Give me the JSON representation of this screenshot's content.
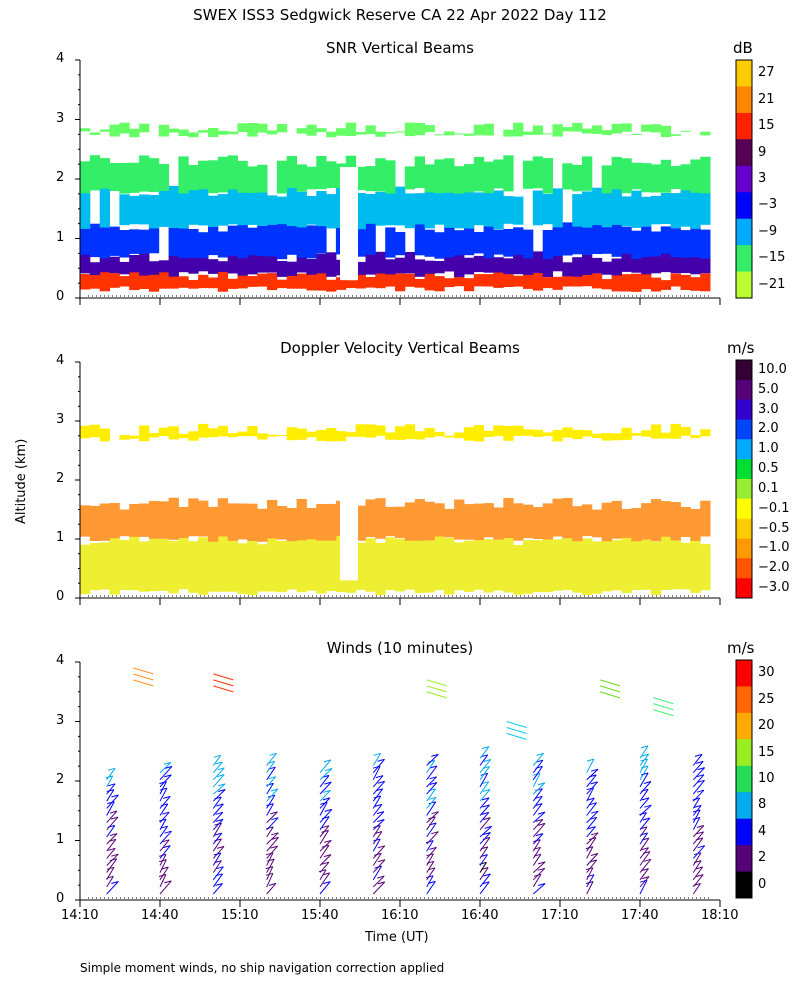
{
  "header": {
    "title": "SWEX ISS3 Sedgwick Reserve CA  22 Apr 2022 Day 112"
  },
  "footer": {
    "note": "Simple moment winds, no ship navigation correction applied"
  },
  "shared_x": {
    "label": "Time (UT)",
    "ticks": [
      "14:10",
      "14:40",
      "15:10",
      "15:40",
      "16:10",
      "16:40",
      "17:10",
      "17:40",
      "18:10"
    ]
  },
  "shared_y": {
    "label": "Altitude (km)",
    "ticks": [
      "0",
      "1",
      "2",
      "3",
      "4"
    ]
  },
  "chart_data": [
    {
      "type": "heatmap",
      "title": "SNR Vertical Beams",
      "unit": "dB",
      "xlim": [
        "14:10",
        "18:10"
      ],
      "ylim": [
        0,
        4
      ],
      "colorbar": {
        "labels": [
          "27",
          "21",
          "15",
          "9",
          "3",
          "−3",
          "−9",
          "−15",
          "−21"
        ],
        "colors": [
          "#ffcc00",
          "#ff8800",
          "#ff2200",
          "#550055",
          "#6600cc",
          "#0000ff",
          "#00aaff",
          "#33ee66",
          "#bbff33"
        ]
      },
      "layers": [
        {
          "name": "strong-bottom",
          "alt_range_km": [
            0.15,
            0.4
          ],
          "color": "#ff3300"
        },
        {
          "name": "violet-band",
          "alt_range_km": [
            0.4,
            0.7
          ],
          "color": "#4400aa"
        },
        {
          "name": "blue-layer",
          "alt_range_km": [
            0.7,
            1.2
          ],
          "color": "#0033ff"
        },
        {
          "name": "cyan-layer",
          "alt_range_km": [
            1.2,
            1.8
          ],
          "color": "#00bbee"
        },
        {
          "name": "green-layer",
          "alt_range_km": [
            1.8,
            2.3
          ],
          "color": "#33ee66"
        },
        {
          "name": "upper-band",
          "alt_range_km": [
            2.75,
            2.85
          ],
          "color": "#66ff66"
        }
      ]
    },
    {
      "type": "heatmap",
      "title": "Doppler Velocity Vertical Beams",
      "unit": "m/s",
      "xlim": [
        "14:10",
        "18:10"
      ],
      "ylim": [
        0,
        4
      ],
      "colorbar": {
        "labels": [
          "10.0",
          "5.0",
          "3.0",
          "2.0",
          "1.0",
          "0.5",
          "0.1",
          "−0.1",
          "−0.5",
          "−1.0",
          "−2.0",
          "−3.0"
        ],
        "colors": [
          "#330033",
          "#550077",
          "#3300cc",
          "#0044ff",
          "#00aaff",
          "#00dd33",
          "#99ee33",
          "#ffff00",
          "#ffcc00",
          "#ff9900",
          "#ff5500",
          "#ff0000"
        ]
      },
      "layers": [
        {
          "name": "lower-yellow",
          "alt_range_km": [
            0.1,
            1.0
          ],
          "color": "#eeee33"
        },
        {
          "name": "orange-layer",
          "alt_range_km": [
            1.0,
            1.6
          ],
          "color": "#ff9933"
        },
        {
          "name": "upper-yellow",
          "alt_range_km": [
            2.7,
            2.85
          ],
          "color": "#ffee00"
        }
      ]
    },
    {
      "type": "scatter",
      "title": "Winds (10 minutes)",
      "unit": "m/s",
      "xlim": [
        "14:10",
        "18:10"
      ],
      "ylim": [
        0,
        4
      ],
      "colorbar": {
        "labels": [
          "30",
          "25",
          "20",
          "15",
          "10",
          "8",
          "4",
          "2",
          "0"
        ],
        "colors": [
          "#ff0000",
          "#ff6600",
          "#ffaa00",
          "#99ee22",
          "#22dd55",
          "#00aaee",
          "#0000ff",
          "#550077",
          "#000000"
        ]
      },
      "wind_profile_times_min_after_1410": [
        10,
        30,
        50,
        70,
        90,
        110,
        130,
        150,
        170,
        190,
        210,
        230
      ],
      "wind_profile_max_alt_km": [
        2.1,
        2.2,
        2.3,
        2.3,
        2.2,
        2.3,
        2.3,
        2.4,
        2.3,
        2.2,
        2.4,
        2.3
      ]
    }
  ]
}
